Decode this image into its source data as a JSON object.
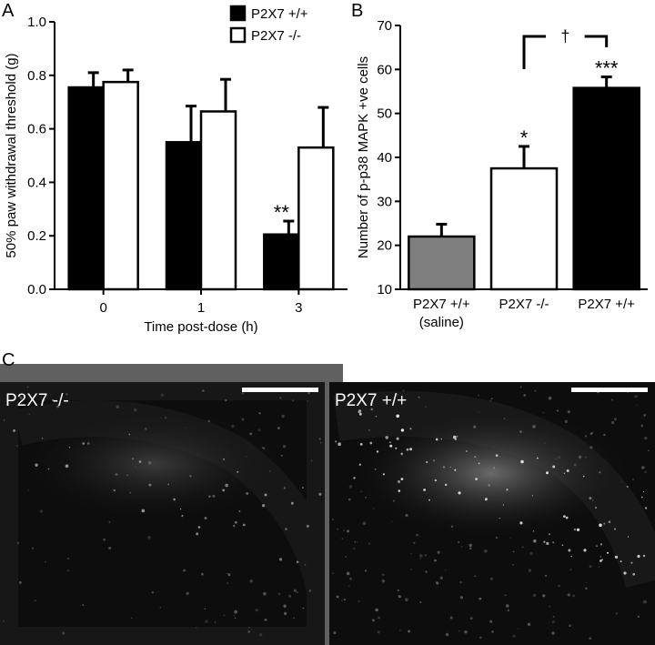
{
  "panels": {
    "a": "A",
    "b": "B",
    "c": "C"
  },
  "chart_data": [
    {
      "type": "bar",
      "panel": "A",
      "categories": [
        "0",
        "1",
        "3"
      ],
      "series": [
        {
          "name": "P2X7 +/+",
          "values": [
            0.755,
            0.55,
            0.205
          ],
          "errors": [
            0.055,
            0.135,
            0.05
          ],
          "color": "#000000"
        },
        {
          "name": "P2X7 -/-",
          "values": [
            0.775,
            0.665,
            0.53
          ],
          "errors": [
            0.045,
            0.12,
            0.15
          ],
          "color": "#ffffff"
        }
      ],
      "annotations": [
        {
          "category": "3",
          "series": "P2X7 +/+",
          "text": "**"
        }
      ],
      "xlabel": "Time post-dose (h)",
      "ylabel": "50% paw withdrawal threshold (g)",
      "ylim": [
        0.0,
        1.0
      ],
      "yticks": [
        "0.0",
        "0.2",
        "0.4",
        "0.6",
        "0.8",
        "1.0"
      ],
      "legend": "top-right",
      "grid": false
    },
    {
      "type": "bar",
      "panel": "B",
      "categories": [
        "P2X7 +/+\n(saline)",
        "P2X7 -/-",
        "P2X7 +/+"
      ],
      "values": [
        22,
        37.5,
        55.8
      ],
      "errors": [
        2.8,
        5.0,
        2.5
      ],
      "colors": [
        "#7f7f7f",
        "#ffffff",
        "#000000"
      ],
      "annotations": [
        {
          "category": "P2X7 -/-",
          "text": "*"
        },
        {
          "category": "P2X7 +/+",
          "text": "***"
        }
      ],
      "bracket": {
        "from": "P2X7 -/-",
        "to": "P2X7 +/+",
        "text": "†"
      },
      "ylabel": "Number of p-p38 MAPK +ve cells",
      "ylim": [
        10,
        70
      ],
      "yticks": [
        "10",
        "20",
        "30",
        "40",
        "50",
        "60",
        "70"
      ],
      "grid": false
    }
  ],
  "micrographs": [
    {
      "label": "P2X7 -/-"
    },
    {
      "label": "P2X7 +/+"
    }
  ]
}
